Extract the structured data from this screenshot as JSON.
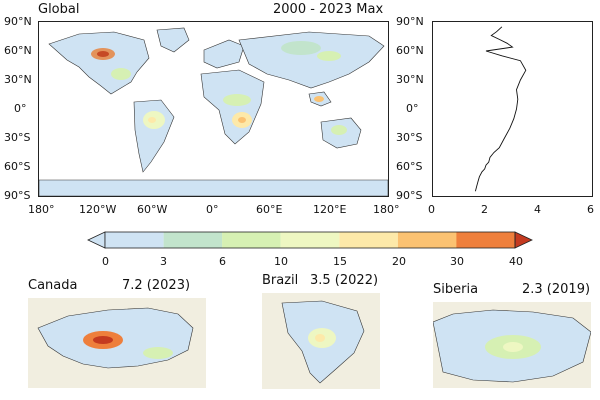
{
  "global": {
    "title_left": "Global",
    "title_right": "2000 - 2023 Max",
    "lat_ticks": [
      "90°N",
      "60°N",
      "30°N",
      "0°",
      "30°S",
      "60°S",
      "90°S"
    ],
    "lon_ticks": [
      "180°",
      "120°W",
      "60°W",
      "0°",
      "60°E",
      "120°E",
      "180°"
    ]
  },
  "profile": {
    "x_ticks": [
      "0",
      "2",
      "4",
      "6"
    ],
    "lat_ticks": [
      "90°N",
      "60°N",
      "30°N",
      "0°",
      "30°S",
      "60°S",
      "90°S"
    ],
    "xlim": [
      0,
      6
    ]
  },
  "colorbar": {
    "boundaries": [
      "0",
      "3",
      "6",
      "10",
      "15",
      "20",
      "30",
      "40"
    ],
    "colors": [
      "#cfe3f3",
      "#c2e4cc",
      "#d6f0b3",
      "#eef7c2",
      "#fde9a9",
      "#fbc272",
      "#ee7f3c"
    ],
    "extend_color": "#c43a20"
  },
  "regions": [
    {
      "name": "Canada",
      "value": "7.2 (2023)"
    },
    {
      "name": "Brazil",
      "value": "3.5 (2022)"
    },
    {
      "name": "Siberia",
      "value": "2.3 (2019)"
    }
  ],
  "chart_data": {
    "type": "line",
    "xlabel": "",
    "ylabel": "",
    "xlim": [
      0,
      6
    ],
    "ylim": [
      -90,
      90
    ],
    "series": [
      {
        "x": [
          1.6,
          1.65,
          1.7,
          1.75,
          1.85,
          1.95,
          2.0,
          2.1,
          2.15,
          2.3,
          2.5,
          2.7,
          2.9,
          3.05,
          3.15,
          3.2,
          3.15,
          3.3,
          3.5,
          3.3,
          2.6,
          2.0,
          3.0,
          2.8,
          2.5,
          2.2,
          2.4,
          2.6
        ],
        "y": [
          -85,
          -80,
          -75,
          -70,
          -65,
          -62,
          -58,
          -55,
          -50,
          -45,
          -40,
          -30,
          -20,
          -10,
          0,
          10,
          20,
          30,
          40,
          50,
          55,
          60,
          64,
          68,
          72,
          76,
          80,
          85
        ]
      }
    ]
  }
}
